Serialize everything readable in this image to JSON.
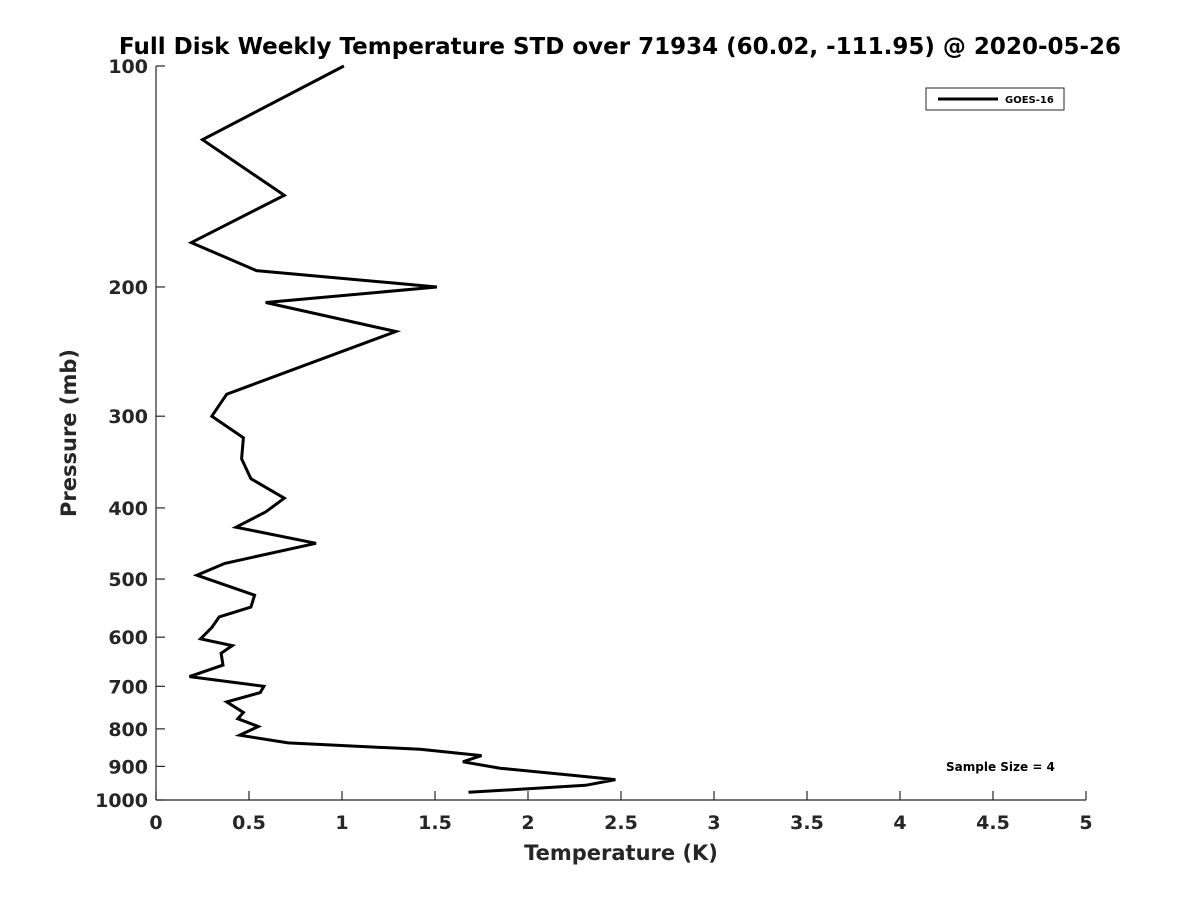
{
  "chart_data": {
    "type": "line",
    "title": "Full Disk Weekly Temperature STD over 71934 (60.02, -111.95) @ 2020-05-26",
    "xlabel": "Temperature (K)",
    "ylabel": "Pressure (mb)",
    "xlim": [
      0,
      5
    ],
    "ylim": [
      100,
      1000
    ],
    "yscale": "log",
    "yreversed": true,
    "xticks": [
      0,
      0.5,
      1,
      1.5,
      2,
      2.5,
      3,
      3.5,
      4,
      4.5,
      5
    ],
    "xtick_labels": [
      "0",
      "0.5",
      "1",
      "1.5",
      "2",
      "2.5",
      "3",
      "3.5",
      "4",
      "4.5",
      "5"
    ],
    "yticks": [
      100,
      200,
      300,
      400,
      500,
      600,
      700,
      800,
      900,
      1000
    ],
    "ytick_labels": [
      "100",
      "200",
      "300",
      "400",
      "500",
      "600",
      "700",
      "800",
      "900",
      "1000"
    ],
    "legend": {
      "entries": [
        "GOES-16"
      ],
      "location": "top-right"
    },
    "annotation": "Sample Size = 4",
    "grid": false,
    "series": [
      {
        "name": "GOES-16",
        "color": "#000000",
        "points": [
          [
            1.01,
            100
          ],
          [
            0.25,
            126
          ],
          [
            0.69,
            150
          ],
          [
            0.19,
            174
          ],
          [
            0.54,
            190
          ],
          [
            1.51,
            200
          ],
          [
            0.59,
            210
          ],
          [
            1.29,
            230
          ],
          [
            0.38,
            280
          ],
          [
            0.3,
            300
          ],
          [
            0.47,
            321
          ],
          [
            0.46,
            343
          ],
          [
            0.51,
            365
          ],
          [
            0.69,
            388
          ],
          [
            0.59,
            405
          ],
          [
            0.43,
            425
          ],
          [
            0.86,
            447
          ],
          [
            0.37,
            476
          ],
          [
            0.22,
            494
          ],
          [
            0.53,
            526
          ],
          [
            0.51,
            546
          ],
          [
            0.34,
            563
          ],
          [
            0.3,
            582
          ],
          [
            0.24,
            603
          ],
          [
            0.41,
            616
          ],
          [
            0.35,
            631
          ],
          [
            0.36,
            655
          ],
          [
            0.18,
            679
          ],
          [
            0.58,
            700
          ],
          [
            0.56,
            714
          ],
          [
            0.38,
            735
          ],
          [
            0.47,
            760
          ],
          [
            0.44,
            775
          ],
          [
            0.55,
            794
          ],
          [
            0.45,
            816
          ],
          [
            0.71,
            836
          ],
          [
            1.42,
            853
          ],
          [
            1.75,
            870
          ],
          [
            1.65,
            887
          ],
          [
            1.85,
            905
          ],
          [
            2.23,
            925
          ],
          [
            2.47,
            938
          ],
          [
            2.31,
            955
          ],
          [
            1.68,
            976
          ]
        ]
      }
    ]
  }
}
